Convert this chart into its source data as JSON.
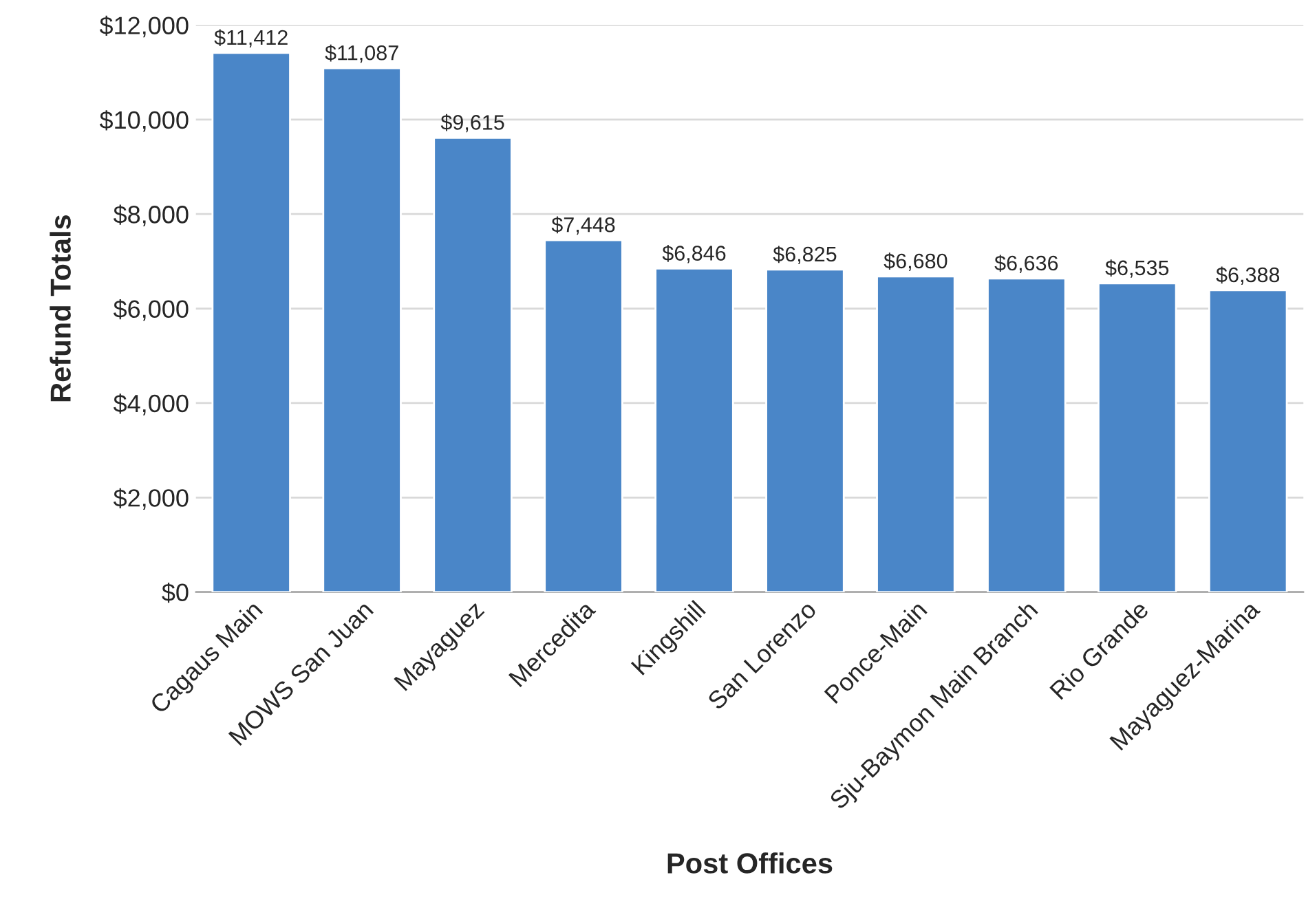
{
  "chart_data": {
    "type": "bar",
    "xlabel": "Post Offices",
    "ylabel": "Refund Totals",
    "categories": [
      "Cagaus Main",
      "MOWS San Juan",
      "Mayaguez",
      "Mercedita",
      "Kingshill",
      "San Lorenzo",
      "Ponce-Main",
      "Sju-Baymon Main Branch",
      "Rio Grande",
      "Mayaguez-Marina"
    ],
    "values": [
      11412,
      11087,
      9615,
      7448,
      6846,
      6825,
      6680,
      6636,
      6535,
      6388
    ],
    "value_labels": [
      "$11,412",
      "$11,087",
      "$9,615",
      "$7,448",
      "$6,846",
      "$6,825",
      "$6,680",
      "$6,636",
      "$6,535",
      "$6,388"
    ],
    "color": "#4a86c8",
    "ylim": [
      0,
      12000
    ],
    "yticks": [
      {
        "value": 0,
        "label": "$0"
      },
      {
        "value": 2000,
        "label": "$2,000"
      },
      {
        "value": 4000,
        "label": "$4,000"
      },
      {
        "value": 6000,
        "label": "$6,000"
      },
      {
        "value": 8000,
        "label": "$8,000"
      },
      {
        "value": 10000,
        "label": "$10,000"
      },
      {
        "value": 12000,
        "label": "$12,000"
      }
    ],
    "grid": "y"
  }
}
